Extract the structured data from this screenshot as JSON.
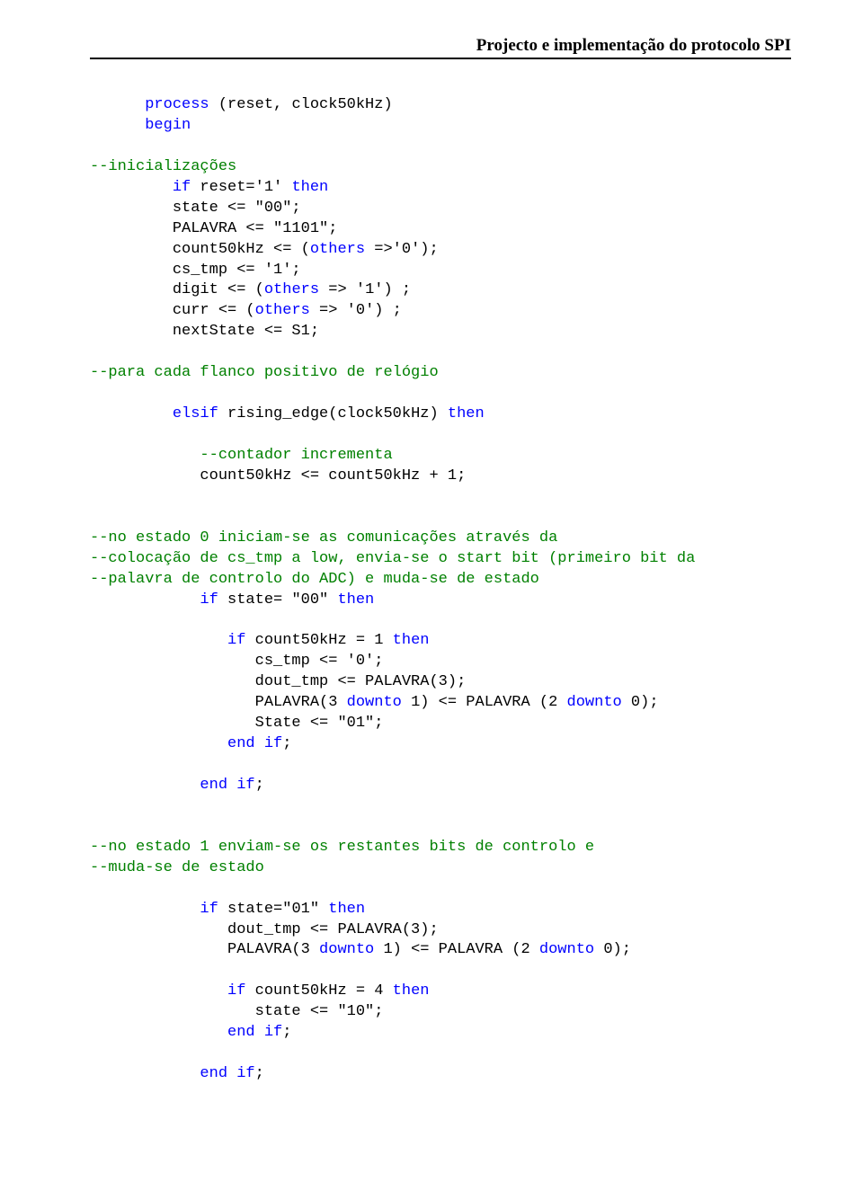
{
  "header": "Projecto e implementação do protocolo SPI",
  "code_fragments": {
    "f1": "      process",
    "f2": " (reset, clock50kHz)",
    "f3": "      begin",
    "f4": "--inicializações",
    "f5": "         if",
    "f6": " reset='1' ",
    "f7": "then",
    "f8": "         state <= \"00\";",
    "f9": "         PALAVRA <= \"1101\";",
    "f10": "         count50kHz <= (",
    "f11": "others",
    "f12": " =>'0');",
    "f13": "         cs_tmp <= '1';",
    "f14": "         digit <= (",
    "f15": "others",
    "f16": " => '1') ;",
    "f17": "         curr <= (",
    "f18": "others",
    "f19": " => '0') ;",
    "f20": "         nextState <= S1;",
    "f21": "--para cada flanco positivo de relógio",
    "f22": "         elsif",
    "f23": " rising_edge(clock50kHz) ",
    "f24": "then",
    "f25": "            --contador incrementa",
    "f26": "            count50kHz <= count50kHz + 1;",
    "f27": "--no estado 0 iniciam-se as comunicações através da ",
    "f28": "--colocação de cs_tmp a low, envia-se o start bit (primeiro bit da ",
    "f29": "--palavra de controlo do ADC) e muda-se de estado",
    "f30": "            if",
    "f31": " state= \"00\" ",
    "f32": "then",
    "f33": "               if",
    "f34": " count50kHz = 1 ",
    "f35": "then",
    "f36": "                  cs_tmp <= '0';",
    "f37": "                  dout_tmp <= PALAVRA(3);",
    "f38": "                  PALAVRA(3 ",
    "f39": "downto",
    "f40": " 1) <= PALAVRA (2 ",
    "f41": "downto",
    "f42": " 0);",
    "f43": "                  State <= \"01\";",
    "f44": "               end",
    "f45": " ",
    "f46": "if",
    "f47": ";",
    "f48": "            end",
    "f49": " ",
    "f50": "if",
    "f51": ";",
    "f52": "--no estado 1 enviam-se os restantes bits de controlo e ",
    "f53": "--muda-se de estado",
    "f54": "            if",
    "f55": " state=\"01\" ",
    "f56": "then",
    "f57": "               dout_tmp <= PALAVRA(3);",
    "f58": "               PALAVRA(3 ",
    "f59": "downto",
    "f60": " 1) <= PALAVRA (2 ",
    "f61": "downto",
    "f62": " 0);",
    "f63": "               if",
    "f64": " count50kHz = 4 ",
    "f65": "then",
    "f66": "                  state <= \"10\";",
    "f67": "               end",
    "f68": " ",
    "f69": "if",
    "f70": ";",
    "f71": "            end",
    "f72": " ",
    "f73": "if",
    "f74": ";"
  }
}
